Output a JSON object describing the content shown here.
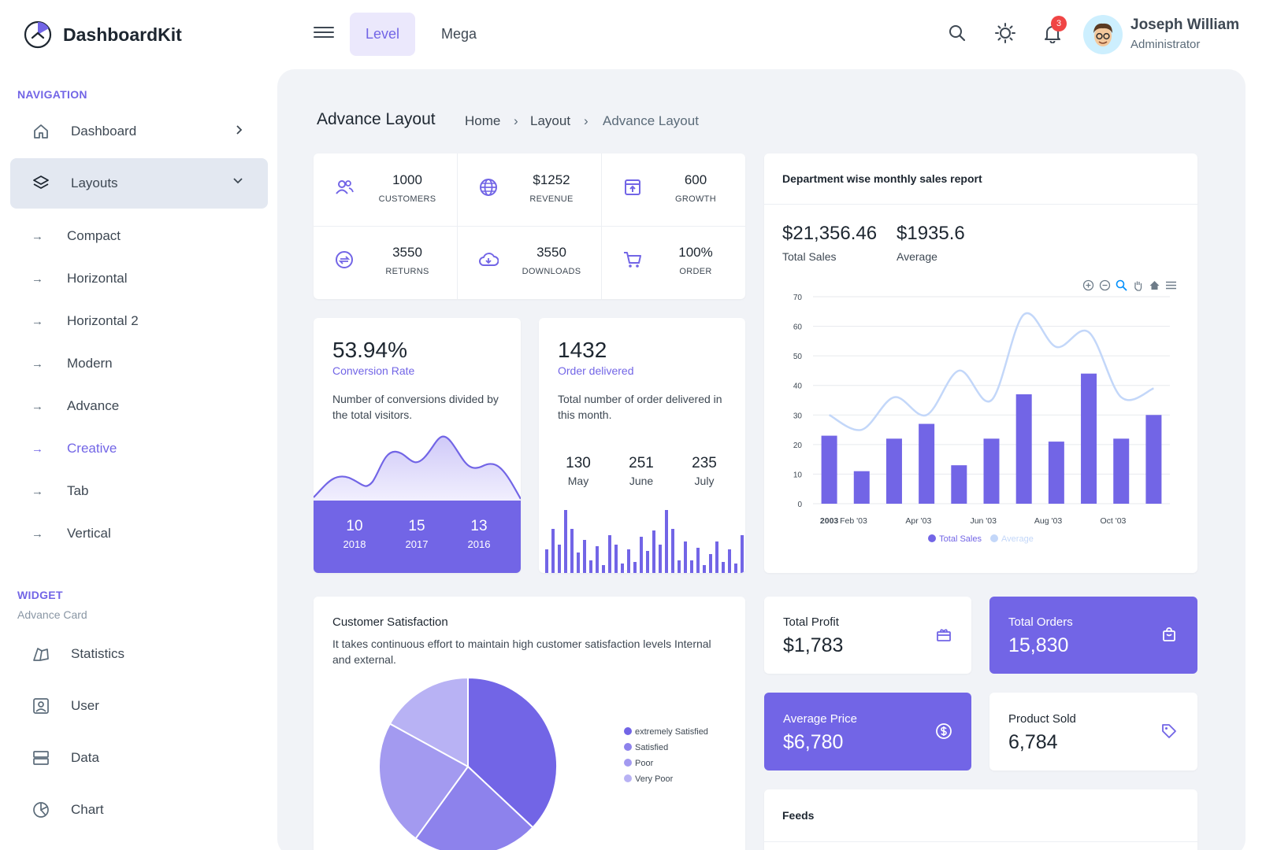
{
  "app": {
    "name": "DashboardKit"
  },
  "header": {
    "tabs": [
      {
        "label": "Level"
      },
      {
        "label": "Mega"
      }
    ],
    "notification_count": "3",
    "user": {
      "name": "Joseph William",
      "role": "Administrator"
    }
  },
  "sidebar": {
    "nav_caption": "NAVIGATION",
    "items": [
      {
        "label": "Dashboard",
        "icon": "home-icon"
      },
      {
        "label": "Layouts",
        "icon": "layers-icon"
      }
    ],
    "layout_sub": [
      {
        "label": "Compact"
      },
      {
        "label": "Horizontal"
      },
      {
        "label": "Horizontal 2"
      },
      {
        "label": "Modern"
      },
      {
        "label": "Advance"
      },
      {
        "label": "Creative"
      },
      {
        "label": "Tab"
      },
      {
        "label": "Vertical"
      }
    ],
    "widget_caption": "WIDGET",
    "widget_sub": "Advance Card",
    "widget_items": [
      {
        "label": "Statistics",
        "icon": "statistics-icon"
      },
      {
        "label": "User",
        "icon": "user-icon"
      },
      {
        "label": "Data",
        "icon": "data-icon"
      },
      {
        "label": "Chart",
        "icon": "chart-icon"
      }
    ]
  },
  "page": {
    "title": "Advance Layout",
    "breadcrumb": [
      "Home",
      "Layout",
      "Advance Layout"
    ]
  },
  "stats": [
    {
      "value": "1000",
      "label": "CUSTOMERS",
      "icon": "users-icon"
    },
    {
      "value": "$1252",
      "label": "REVENUE",
      "icon": "globe-icon"
    },
    {
      "value": "600",
      "label": "GROWTH",
      "icon": "archive-icon"
    },
    {
      "value": "3550",
      "label": "RETURNS",
      "icon": "refresh-icon"
    },
    {
      "value": "3550",
      "label": "DOWNLOADS",
      "icon": "cloud-download-icon"
    },
    {
      "value": "100%",
      "label": "ORDER",
      "icon": "cart-icon"
    }
  ],
  "conversion": {
    "value": "53.94%",
    "label": "Conversion Rate",
    "desc": "Number of conversions divided by the total visitors.",
    "footer": [
      {
        "value": "10",
        "year": "2018"
      },
      {
        "value": "15",
        "year": "2017"
      },
      {
        "value": "13",
        "year": "2016"
      }
    ]
  },
  "orders": {
    "value": "1432",
    "label": "Order delivered",
    "desc": "Total number of order delivered in this month.",
    "months": [
      {
        "value": "130",
        "month": "May"
      },
      {
        "value": "251",
        "month": "June"
      },
      {
        "value": "235",
        "month": "July"
      }
    ]
  },
  "sales_report": {
    "title": "Department wise monthly sales report",
    "total_sales": "$21,356.46",
    "total_sales_label": "Total Sales",
    "average": "$1935.6",
    "average_label": "Average"
  },
  "chart_data": {
    "type": "bar",
    "title": "",
    "x_tick_labels": [
      "2003",
      "Feb '03",
      "Apr '03",
      "Jun '03",
      "Aug '03",
      "Oct '03"
    ],
    "ylim": [
      0,
      70
    ],
    "y_ticks": [
      0,
      10,
      20,
      30,
      40,
      50,
      60,
      70
    ],
    "series": [
      {
        "name": "Total Sales",
        "type": "bar",
        "values": [
          23,
          11,
          22,
          27,
          13,
          22,
          37,
          21,
          44,
          22,
          30
        ],
        "color": "#7265e6"
      },
      {
        "name": "Average",
        "type": "line",
        "values": [
          30,
          25,
          36,
          30,
          45,
          35,
          64,
          53,
          58,
          36,
          39
        ],
        "color": "#c3d7f9"
      }
    ],
    "legend_position": "bottom",
    "grid": true
  },
  "satisfaction": {
    "title": "Customer Satisfaction",
    "desc": "It takes continuous effort to maintain high customer satisfaction levels Internal and external.",
    "pie": {
      "type": "pie",
      "labels": [
        "extremely Satisfied",
        "Satisfied",
        "Poor",
        "Very Poor"
      ],
      "values": [
        37,
        23,
        23,
        17
      ],
      "colors": [
        "#7265e6",
        "#8d82ec",
        "#a39af0",
        "#b8b2f4"
      ]
    }
  },
  "kpis": [
    {
      "title": "Total Profit",
      "value": "$1,783",
      "icon": "gift-icon",
      "style": "white"
    },
    {
      "title": "Total Orders",
      "value": "15,830",
      "icon": "shopping-bag-icon",
      "style": "purple"
    },
    {
      "title": "Average Price",
      "value": "$6,780",
      "icon": "dollar-icon",
      "style": "purple"
    },
    {
      "title": "Product Sold",
      "value": "6,784",
      "icon": "tag-icon",
      "style": "white"
    }
  ],
  "feeds": {
    "title": "Feeds"
  },
  "colors": {
    "accent": "#7265e6",
    "accent_light": "#ebe8fc",
    "bg": "#f1f3f7"
  }
}
